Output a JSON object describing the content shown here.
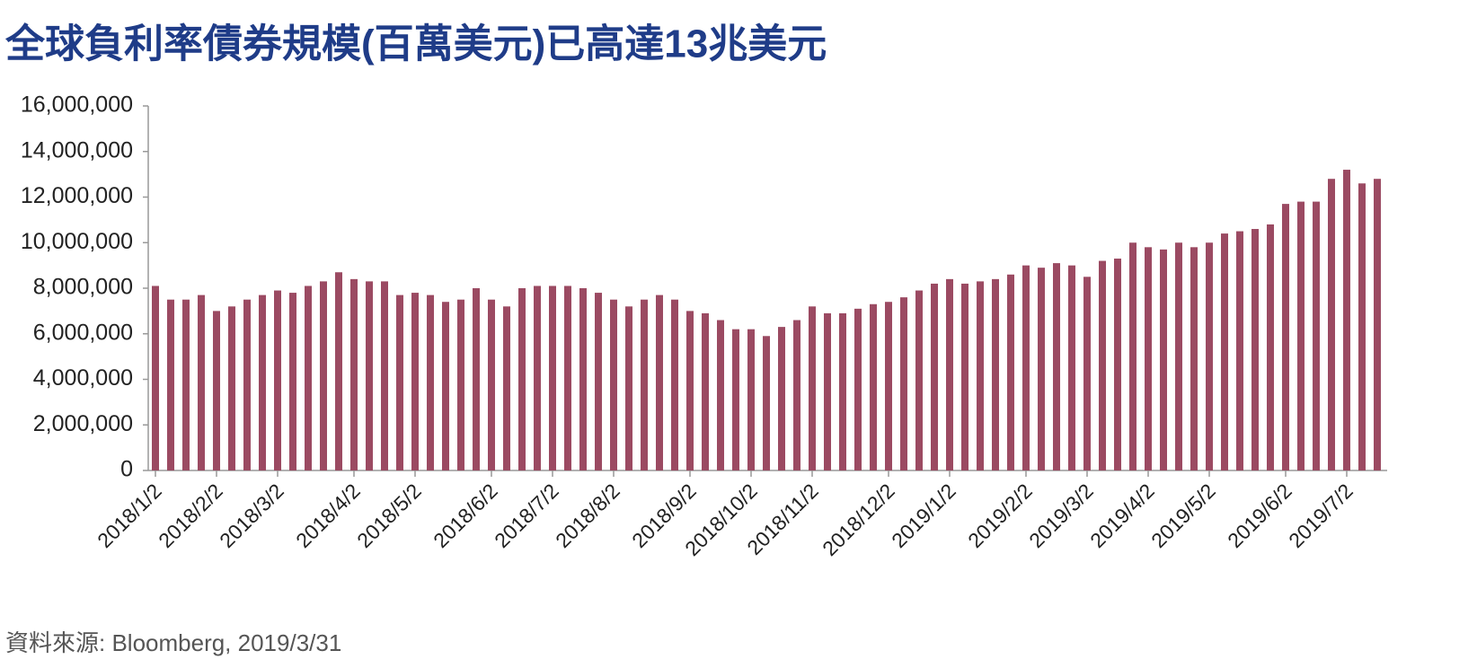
{
  "chart_data": {
    "type": "bar",
    "title": "全球負利率債券規模(百萬美元)已高達13兆美元",
    "source": "資料來源: Bloomberg, 2019/3/31",
    "color": "#9b4a62",
    "categories": [
      "2018/1/2",
      null,
      null,
      null,
      "2018/2/2",
      null,
      null,
      null,
      "2018/3/2",
      null,
      null,
      null,
      null,
      "2018/4/2",
      null,
      null,
      null,
      "2018/5/2",
      null,
      null,
      null,
      null,
      "2018/6/2",
      null,
      null,
      null,
      "2018/7/2",
      null,
      null,
      null,
      "2018/8/2",
      null,
      null,
      null,
      null,
      "2018/9/2",
      null,
      null,
      null,
      "2018/10/2",
      null,
      null,
      null,
      "2018/11/2",
      null,
      null,
      null,
      null,
      "2018/12/2",
      null,
      null,
      null,
      "2019/1/2",
      null,
      null,
      null,
      null,
      "2019/2/2",
      null,
      null,
      null,
      "2019/3/2",
      null,
      null,
      null,
      "2019/4/2",
      null,
      null,
      null,
      "2019/5/2",
      null,
      null,
      null,
      null,
      "2019/6/2",
      null,
      null,
      null,
      "2019/7/2",
      null,
      null
    ],
    "values": [
      8100000,
      7500000,
      7500000,
      7700000,
      7000000,
      7200000,
      7500000,
      7700000,
      7900000,
      7800000,
      8100000,
      8300000,
      8700000,
      8400000,
      8300000,
      8300000,
      7700000,
      7800000,
      7700000,
      7400000,
      7500000,
      8000000,
      7500000,
      7200000,
      8000000,
      8100000,
      8100000,
      8100000,
      8000000,
      7800000,
      7500000,
      7200000,
      7500000,
      7700000,
      7500000,
      7000000,
      6900000,
      6600000,
      6200000,
      6200000,
      5900000,
      6300000,
      6600000,
      7200000,
      6900000,
      6900000,
      7100000,
      7300000,
      7400000,
      7600000,
      7900000,
      8200000,
      8400000,
      8200000,
      8300000,
      8400000,
      8600000,
      9000000,
      8900000,
      9100000,
      9000000,
      8500000,
      9200000,
      9300000,
      10000000,
      9800000,
      9700000,
      10000000,
      9800000,
      10000000,
      10400000,
      10500000,
      10600000,
      10800000,
      11700000,
      11800000,
      11800000,
      12800000,
      13200000,
      12600000,
      12800000
    ],
    "ylim": [
      0,
      16000000
    ],
    "yticks": [
      0,
      {
        "value": 2000000,
        "label": "2,000,000"
      },
      {
        "value": 4000000,
        "label": "4,000,000"
      },
      {
        "value": 6000000,
        "label": "6,000,000"
      },
      {
        "value": 8000000,
        "label": "8,000,000"
      },
      {
        "value": 10000000,
        "label": "10,000,000"
      },
      {
        "value": 12000000,
        "label": "12,000,000"
      },
      {
        "value": 14000000,
        "label": "14,000,000"
      },
      {
        "value": 16000000,
        "label": "16,000,000"
      }
    ],
    "grid": false
  }
}
